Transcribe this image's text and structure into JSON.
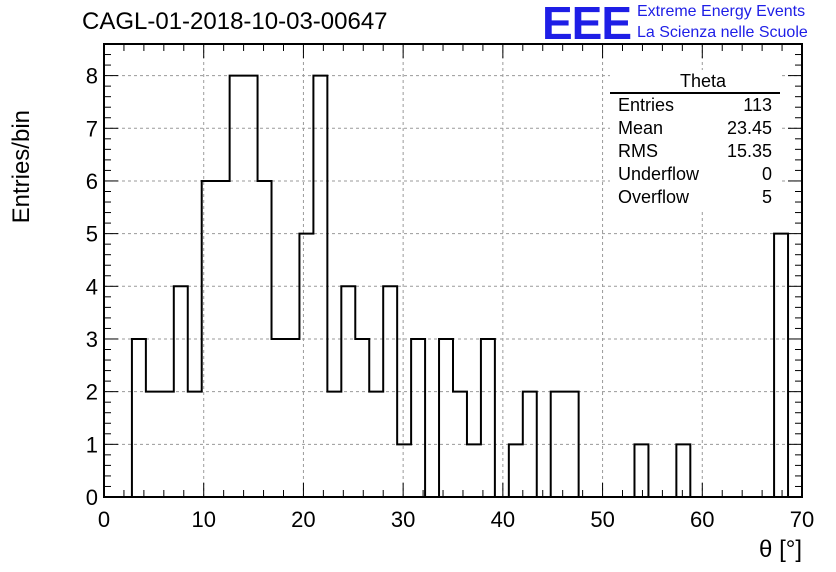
{
  "header": {
    "title": "CAGL-01-2018-10-03-00647"
  },
  "logo": {
    "mark": "EEE",
    "line1": "Extreme Energy Events",
    "line2": "La Scienza nelle Scuole"
  },
  "stats_box": {
    "title": "Theta",
    "rows": [
      {
        "label": "Entries",
        "value": "113"
      },
      {
        "label": "Mean",
        "value": "23.45"
      },
      {
        "label": "RMS",
        "value": "15.35"
      },
      {
        "label": "Underflow",
        "value": "0"
      },
      {
        "label": "Overflow",
        "value": "5"
      }
    ]
  },
  "chart_data": {
    "type": "bar",
    "style": "step-histogram",
    "xlabel": "θ [°]",
    "ylabel": "Entries/bin",
    "xlim": [
      0,
      70
    ],
    "ylim": [
      0,
      8.6
    ],
    "grid": true,
    "bin_width": 1.4,
    "bin_edges_start": 2.8,
    "values": [
      3,
      2,
      2,
      4,
      2,
      6,
      6,
      8,
      8,
      6,
      3,
      3,
      5,
      8,
      2,
      4,
      3,
      2,
      4,
      1,
      3,
      0,
      3,
      2,
      1,
      3,
      0,
      1,
      2,
      0,
      2,
      2,
      0,
      0,
      0,
      0,
      1,
      0,
      0,
      1,
      0,
      0,
      0,
      0,
      0,
      0,
      5
    ],
    "x_ticks": [
      0,
      10,
      20,
      30,
      40,
      50,
      60,
      70
    ],
    "y_ticks": [
      0,
      1,
      2,
      3,
      4,
      5,
      6,
      7,
      8
    ],
    "colors": {
      "line": "#000000",
      "grid": "#9a9a9a",
      "logo": "#1e1ee6"
    }
  }
}
